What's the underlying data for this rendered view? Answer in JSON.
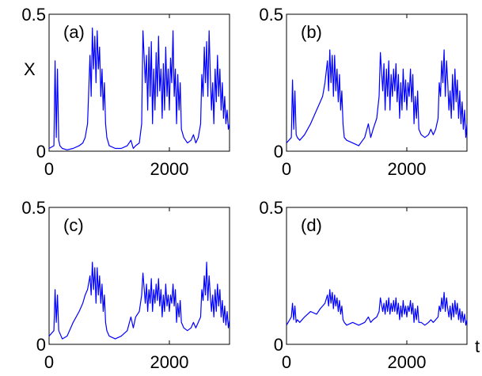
{
  "chart_data": [
    {
      "type": "line",
      "panel_label": "(a)",
      "ylabel": "X",
      "xlabel": "",
      "xlim": [
        0,
        3000
      ],
      "ylim": [
        0,
        0.5
      ],
      "xticks": [
        "0",
        "2000"
      ],
      "yticks": [
        "0",
        "0.5"
      ],
      "grid": false,
      "series": [
        {
          "color": "#0000ff",
          "x": [
            0,
            80,
            100,
            120,
            140,
            160,
            180,
            220,
            300,
            400,
            500,
            560,
            600,
            640,
            680,
            700,
            720,
            740,
            760,
            780,
            800,
            820,
            840,
            860,
            880,
            900,
            920,
            940,
            960,
            1000,
            1100,
            1200,
            1300,
            1360,
            1400,
            1440,
            1500,
            1540,
            1560,
            1600,
            1620,
            1640,
            1660,
            1680,
            1700,
            1720,
            1740,
            1760,
            1780,
            1800,
            1820,
            1840,
            1860,
            1880,
            1900,
            1920,
            1940,
            1960,
            1980,
            2000,
            2020,
            2040,
            2060,
            2080,
            2100,
            2120,
            2140,
            2160,
            2180,
            2200,
            2240,
            2300,
            2360,
            2400,
            2440,
            2480,
            2520,
            2540,
            2560,
            2580,
            2600,
            2620,
            2640,
            2660,
            2680,
            2700,
            2720,
            2740,
            2760,
            2780,
            2800,
            2820,
            2840,
            2860,
            2880,
            2900,
            2920,
            2940,
            2960,
            2980,
            3000
          ],
          "y": [
            0.01,
            0.02,
            0.33,
            0.05,
            0.3,
            0.04,
            0.02,
            0.01,
            0.005,
            0.01,
            0.02,
            0.03,
            0.05,
            0.1,
            0.35,
            0.2,
            0.45,
            0.3,
            0.42,
            0.25,
            0.44,
            0.3,
            0.38,
            0.2,
            0.3,
            0.15,
            0.25,
            0.1,
            0.05,
            0.02,
            0.01,
            0.01,
            0.02,
            0.04,
            0.01,
            0.02,
            0.03,
            0.1,
            0.44,
            0.25,
            0.35,
            0.15,
            0.38,
            0.2,
            0.4,
            0.1,
            0.3,
            0.15,
            0.36,
            0.2,
            0.42,
            0.22,
            0.3,
            0.12,
            0.32,
            0.15,
            0.38,
            0.2,
            0.3,
            0.15,
            0.34,
            0.25,
            0.44,
            0.2,
            0.3,
            0.1,
            0.28,
            0.15,
            0.25,
            0.08,
            0.05,
            0.03,
            0.04,
            0.06,
            0.03,
            0.05,
            0.1,
            0.28,
            0.2,
            0.38,
            0.25,
            0.4,
            0.2,
            0.44,
            0.28,
            0.15,
            0.25,
            0.1,
            0.3,
            0.18,
            0.35,
            0.2,
            0.3,
            0.15,
            0.25,
            0.12,
            0.2,
            0.1,
            0.15,
            0.08,
            0.1
          ]
        }
      ]
    },
    {
      "type": "line",
      "panel_label": "(b)",
      "ylabel": "",
      "xlabel": "",
      "xlim": [
        0,
        3000
      ],
      "ylim": [
        0,
        0.5
      ],
      "xticks": [
        "0",
        "2000"
      ],
      "yticks": [
        "0",
        "0.5"
      ],
      "grid": false,
      "series": [
        {
          "color": "#0000ff",
          "x": [
            0,
            80,
            100,
            120,
            140,
            160,
            180,
            220,
            300,
            400,
            500,
            560,
            600,
            640,
            680,
            700,
            720,
            740,
            760,
            780,
            800,
            820,
            840,
            860,
            880,
            900,
            920,
            940,
            960,
            1000,
            1100,
            1200,
            1300,
            1360,
            1400,
            1440,
            1500,
            1540,
            1560,
            1600,
            1620,
            1640,
            1660,
            1680,
            1700,
            1720,
            1740,
            1760,
            1780,
            1800,
            1820,
            1840,
            1860,
            1880,
            1900,
            1920,
            1940,
            1960,
            1980,
            2000,
            2020,
            2040,
            2060,
            2080,
            2100,
            2120,
            2140,
            2160,
            2180,
            2200,
            2240,
            2300,
            2360,
            2400,
            2440,
            2480,
            2520,
            2540,
            2560,
            2580,
            2600,
            2620,
            2640,
            2660,
            2680,
            2700,
            2720,
            2740,
            2760,
            2780,
            2800,
            2820,
            2840,
            2860,
            2880,
            2900,
            2920,
            2940,
            2960,
            2980,
            3000
          ],
          "y": [
            0.03,
            0.05,
            0.26,
            0.08,
            0.22,
            0.06,
            0.05,
            0.04,
            0.06,
            0.1,
            0.15,
            0.18,
            0.2,
            0.25,
            0.33,
            0.22,
            0.37,
            0.25,
            0.35,
            0.2,
            0.35,
            0.22,
            0.3,
            0.18,
            0.28,
            0.15,
            0.22,
            0.1,
            0.05,
            0.04,
            0.03,
            0.02,
            0.05,
            0.1,
            0.05,
            0.08,
            0.12,
            0.2,
            0.36,
            0.22,
            0.32,
            0.15,
            0.3,
            0.2,
            0.33,
            0.15,
            0.28,
            0.2,
            0.3,
            0.22,
            0.32,
            0.18,
            0.28,
            0.12,
            0.25,
            0.15,
            0.3,
            0.18,
            0.26,
            0.15,
            0.25,
            0.2,
            0.3,
            0.18,
            0.28,
            0.1,
            0.2,
            0.12,
            0.22,
            0.08,
            0.06,
            0.05,
            0.06,
            0.08,
            0.06,
            0.08,
            0.12,
            0.25,
            0.2,
            0.33,
            0.25,
            0.37,
            0.2,
            0.33,
            0.25,
            0.15,
            0.22,
            0.12,
            0.28,
            0.15,
            0.3,
            0.18,
            0.26,
            0.12,
            0.22,
            0.1,
            0.18,
            0.08,
            0.15,
            0.05,
            0.1
          ]
        }
      ]
    },
    {
      "type": "line",
      "panel_label": "(c)",
      "ylabel": "",
      "xlabel": "",
      "xlim": [
        0,
        3000
      ],
      "ylim": [
        0,
        0.5
      ],
      "xticks": [
        "0",
        "2000"
      ],
      "yticks": [
        "0",
        "0.5"
      ],
      "grid": false,
      "series": [
        {
          "color": "#0000ff",
          "x": [
            0,
            80,
            100,
            120,
            140,
            160,
            180,
            220,
            300,
            400,
            500,
            560,
            600,
            640,
            680,
            700,
            720,
            740,
            760,
            780,
            800,
            820,
            840,
            860,
            880,
            900,
            920,
            940,
            960,
            1000,
            1100,
            1200,
            1300,
            1360,
            1400,
            1440,
            1500,
            1540,
            1560,
            1600,
            1620,
            1640,
            1660,
            1680,
            1700,
            1720,
            1740,
            1760,
            1780,
            1800,
            1820,
            1840,
            1860,
            1880,
            1900,
            1920,
            1940,
            1960,
            1980,
            2000,
            2020,
            2040,
            2060,
            2080,
            2100,
            2120,
            2140,
            2160,
            2180,
            2200,
            2240,
            2300,
            2360,
            2400,
            2440,
            2480,
            2520,
            2540,
            2560,
            2580,
            2600,
            2620,
            2640,
            2660,
            2680,
            2700,
            2720,
            2740,
            2760,
            2780,
            2800,
            2820,
            2840,
            2860,
            2880,
            2900,
            2920,
            2940,
            2960,
            2980,
            3000
          ],
          "y": [
            0.03,
            0.05,
            0.2,
            0.08,
            0.18,
            0.05,
            0.04,
            0.02,
            0.03,
            0.08,
            0.12,
            0.15,
            0.18,
            0.2,
            0.25,
            0.18,
            0.3,
            0.2,
            0.28,
            0.15,
            0.28,
            0.18,
            0.25,
            0.15,
            0.22,
            0.12,
            0.18,
            0.08,
            0.05,
            0.03,
            0.02,
            0.03,
            0.05,
            0.1,
            0.06,
            0.1,
            0.12,
            0.18,
            0.26,
            0.15,
            0.22,
            0.12,
            0.2,
            0.15,
            0.24,
            0.12,
            0.2,
            0.15,
            0.22,
            0.16,
            0.24,
            0.14,
            0.2,
            0.1,
            0.18,
            0.12,
            0.22,
            0.14,
            0.18,
            0.12,
            0.18,
            0.15,
            0.22,
            0.14,
            0.2,
            0.08,
            0.15,
            0.1,
            0.16,
            0.08,
            0.06,
            0.05,
            0.06,
            0.08,
            0.06,
            0.08,
            0.1,
            0.2,
            0.16,
            0.25,
            0.18,
            0.3,
            0.16,
            0.25,
            0.18,
            0.12,
            0.18,
            0.1,
            0.2,
            0.12,
            0.22,
            0.14,
            0.2,
            0.1,
            0.16,
            0.08,
            0.14,
            0.07,
            0.12,
            0.06,
            0.09
          ]
        }
      ]
    },
    {
      "type": "line",
      "panel_label": "(d)",
      "ylabel": "",
      "xlabel": "t",
      "xlim": [
        0,
        3000
      ],
      "ylim": [
        0,
        0.5
      ],
      "xticks": [
        "0",
        "2000"
      ],
      "yticks": [
        "0",
        "0.5"
      ],
      "grid": false,
      "series": [
        {
          "color": "#0000ff",
          "x": [
            0,
            80,
            100,
            120,
            140,
            160,
            180,
            220,
            300,
            400,
            500,
            560,
            600,
            640,
            680,
            700,
            720,
            740,
            760,
            780,
            800,
            820,
            840,
            860,
            880,
            900,
            920,
            940,
            960,
            1000,
            1100,
            1200,
            1300,
            1360,
            1400,
            1440,
            1500,
            1540,
            1560,
            1600,
            1620,
            1640,
            1660,
            1680,
            1700,
            1720,
            1740,
            1760,
            1780,
            1800,
            1820,
            1840,
            1860,
            1880,
            1900,
            1920,
            1940,
            1960,
            1980,
            2000,
            2020,
            2040,
            2060,
            2080,
            2100,
            2120,
            2140,
            2160,
            2180,
            2200,
            2240,
            2300,
            2360,
            2400,
            2440,
            2480,
            2520,
            2540,
            2560,
            2580,
            2600,
            2620,
            2640,
            2660,
            2680,
            2700,
            2720,
            2740,
            2760,
            2780,
            2800,
            2820,
            2840,
            2860,
            2880,
            2900,
            2920,
            2940,
            2960,
            2980,
            3000
          ],
          "y": [
            0.07,
            0.1,
            0.15,
            0.09,
            0.14,
            0.08,
            0.09,
            0.08,
            0.1,
            0.12,
            0.11,
            0.13,
            0.14,
            0.15,
            0.18,
            0.14,
            0.2,
            0.15,
            0.19,
            0.13,
            0.18,
            0.14,
            0.17,
            0.12,
            0.16,
            0.11,
            0.14,
            0.09,
            0.08,
            0.07,
            0.08,
            0.07,
            0.08,
            0.1,
            0.08,
            0.09,
            0.1,
            0.12,
            0.17,
            0.12,
            0.15,
            0.11,
            0.16,
            0.12,
            0.17,
            0.11,
            0.15,
            0.12,
            0.16,
            0.12,
            0.17,
            0.11,
            0.15,
            0.09,
            0.14,
            0.1,
            0.16,
            0.11,
            0.14,
            0.1,
            0.14,
            0.12,
            0.16,
            0.11,
            0.15,
            0.08,
            0.13,
            0.09,
            0.14,
            0.08,
            0.08,
            0.07,
            0.08,
            0.09,
            0.08,
            0.09,
            0.1,
            0.14,
            0.12,
            0.17,
            0.13,
            0.19,
            0.12,
            0.17,
            0.13,
            0.1,
            0.14,
            0.09,
            0.15,
            0.1,
            0.16,
            0.11,
            0.15,
            0.09,
            0.13,
            0.08,
            0.12,
            0.08,
            0.11,
            0.07,
            0.09
          ]
        }
      ]
    }
  ]
}
